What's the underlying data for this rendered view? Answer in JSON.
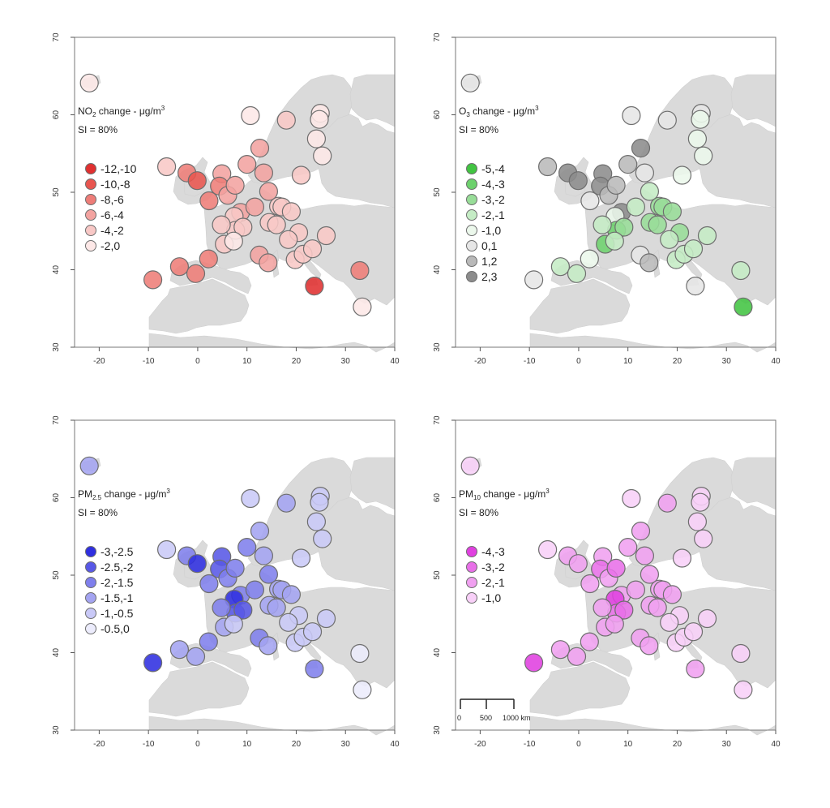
{
  "xticks": [
    "-20",
    "-10",
    "0",
    "10",
    "20",
    "30",
    "40"
  ],
  "yticks": [
    "30",
    "40",
    "50",
    "60",
    "70"
  ],
  "si_text": "SI = 80%",
  "title_suffix": " change - μg/m",
  "title_sup": "3",
  "scale_bar": {
    "labels": [
      "0",
      "500",
      "1000 km"
    ]
  },
  "stations": [
    {
      "lon": -22,
      "lat": 64.1
    },
    {
      "lon": 10.7,
      "lat": 59.9
    },
    {
      "lon": 18,
      "lat": 59.3
    },
    {
      "lon": 24.9,
      "lat": 60.2
    },
    {
      "lon": 24.7,
      "lat": 59.4
    },
    {
      "lon": 24.1,
      "lat": 56.9
    },
    {
      "lon": 25.3,
      "lat": 54.7
    },
    {
      "lon": 12.6,
      "lat": 55.7
    },
    {
      "lon": -6.3,
      "lat": 53.3
    },
    {
      "lon": -2.2,
      "lat": 52.5
    },
    {
      "lon": -0.1,
      "lat": 51.5
    },
    {
      "lon": 4.9,
      "lat": 52.4
    },
    {
      "lon": 4.4,
      "lat": 50.8
    },
    {
      "lon": 10,
      "lat": 53.6
    },
    {
      "lon": 13.4,
      "lat": 52.5
    },
    {
      "lon": 6.1,
      "lat": 49.6
    },
    {
      "lon": 7.6,
      "lat": 50.9
    },
    {
      "lon": 2.3,
      "lat": 48.9
    },
    {
      "lon": 8.7,
      "lat": 47.4
    },
    {
      "lon": 7.4,
      "lat": 46.9
    },
    {
      "lon": 11.6,
      "lat": 48.1
    },
    {
      "lon": 16.4,
      "lat": 48.2
    },
    {
      "lon": 14.4,
      "lat": 50.1
    },
    {
      "lon": 21,
      "lat": 52.2
    },
    {
      "lon": 17.1,
      "lat": 48.1
    },
    {
      "lon": 19,
      "lat": 47.5
    },
    {
      "lon": 14.5,
      "lat": 46.1
    },
    {
      "lon": 16,
      "lat": 45.8
    },
    {
      "lon": 20.5,
      "lat": 44.8
    },
    {
      "lon": 7.7,
      "lat": 45.1
    },
    {
      "lon": 9.2,
      "lat": 45.5
    },
    {
      "lon": 5.4,
      "lat": 43.3
    },
    {
      "lon": 4.8,
      "lat": 45.8
    },
    {
      "lon": 2.2,
      "lat": 41.4
    },
    {
      "lon": -3.7,
      "lat": 40.4
    },
    {
      "lon": -9.1,
      "lat": 38.7
    },
    {
      "lon": -0.4,
      "lat": 39.5
    },
    {
      "lon": 12.5,
      "lat": 41.9
    },
    {
      "lon": 14.3,
      "lat": 40.9
    },
    {
      "lon": 18.4,
      "lat": 43.9
    },
    {
      "lon": 19.8,
      "lat": 41.3
    },
    {
      "lon": 21.4,
      "lat": 42
    },
    {
      "lon": 23.3,
      "lat": 42.7
    },
    {
      "lon": 26.1,
      "lat": 44.4
    },
    {
      "lon": 23.7,
      "lat": 37.9
    },
    {
      "lon": 32.9,
      "lat": 39.9
    },
    {
      "lon": 33.4,
      "lat": 35.2
    },
    {
      "lon": 7.3,
      "lat": 43.7
    }
  ],
  "panels": [
    {
      "id": "no2",
      "title_main": "NO",
      "title_sub": "2",
      "legend": [
        {
          "label": "-12,-10",
          "color": "#e03030"
        },
        {
          "label": "-10,-8",
          "color": "#e8554f"
        },
        {
          "label": "-8,-6",
          "color": "#ee7d78"
        },
        {
          "label": "-6,-4",
          "color": "#f3a3a0"
        },
        {
          "label": "-4,-2",
          "color": "#f8c8c6"
        },
        {
          "label": "-2,0",
          "color": "#fde8e7"
        }
      ],
      "classes": [
        5,
        5,
        4,
        5,
        5,
        5,
        5,
        3,
        4,
        2,
        1,
        3,
        2,
        3,
        3,
        3,
        3,
        2,
        3,
        4,
        3,
        4,
        3,
        4,
        4,
        4,
        4,
        4,
        4,
        4,
        4,
        4,
        4,
        2,
        2,
        2,
        2,
        3,
        3,
        4,
        4,
        4,
        4,
        4,
        0,
        2,
        5,
        5
      ]
    },
    {
      "id": "o3",
      "title_main": "O",
      "title_sub": "3",
      "legend": [
        {
          "label": "-5,-4",
          "color": "#42c442"
        },
        {
          "label": "-4,-3",
          "color": "#6dd16d"
        },
        {
          "label": "-3,-2",
          "color": "#98dd98"
        },
        {
          "label": "-2,-1",
          "color": "#c5ecc5"
        },
        {
          "label": "-1,0",
          "color": "#ecf8ec"
        },
        {
          "label": "0,1",
          "color": "#e6e6e6"
        },
        {
          "label": "1,2",
          "color": "#b9b9b9"
        },
        {
          "label": "2,3",
          "color": "#8c8c8c"
        }
      ],
      "classes": [
        5,
        5,
        5,
        5,
        4,
        4,
        4,
        7,
        6,
        7,
        7,
        7,
        7,
        6,
        5,
        6,
        6,
        5,
        7,
        4,
        3,
        2,
        3,
        4,
        2,
        2,
        2,
        2,
        2,
        1,
        2,
        1,
        3,
        4,
        3,
        5,
        3,
        5,
        6,
        3,
        3,
        3,
        3,
        3,
        5,
        3,
        0,
        3
      ]
    },
    {
      "id": "pm25",
      "title_main": "PM",
      "title_sub": "2.5",
      "legend": [
        {
          "label": "-3,-2.5",
          "color": "#2f2fe0"
        },
        {
          "label": "-2.5,-2",
          "color": "#5858e6"
        },
        {
          "label": "-2,-1.5",
          "color": "#7f7fec"
        },
        {
          "label": "-1.5,-1",
          "color": "#a4a4f1"
        },
        {
          "label": "-1,-0.5",
          "color": "#c9c9f7"
        },
        {
          "label": "-0.5,0",
          "color": "#ececfc"
        }
      ],
      "classes": [
        3,
        4,
        3,
        4,
        4,
        4,
        4,
        3,
        4,
        2,
        0,
        1,
        1,
        2,
        3,
        2,
        2,
        2,
        2,
        0,
        2,
        3,
        2,
        4,
        3,
        3,
        3,
        3,
        4,
        1,
        1,
        3,
        2,
        2,
        3,
        0,
        3,
        2,
        3,
        4,
        4,
        4,
        4,
        4,
        2,
        5,
        5,
        4
      ]
    },
    {
      "id": "pm10",
      "title_main": "PM",
      "title_sub": "10",
      "legend": [
        {
          "label": "-4,-3",
          "color": "#e040e0"
        },
        {
          "label": "-3,-2",
          "color": "#e870e8"
        },
        {
          "label": "-2,-1",
          "color": "#f0a0f0"
        },
        {
          "label": "-1,0",
          "color": "#f8d0f8"
        }
      ],
      "classes": [
        3,
        3,
        2,
        3,
        3,
        3,
        3,
        2,
        3,
        2,
        2,
        2,
        1,
        2,
        2,
        2,
        1,
        2,
        2,
        0,
        2,
        2,
        2,
        3,
        2,
        2,
        2,
        2,
        3,
        1,
        1,
        2,
        2,
        2,
        2,
        0,
        2,
        2,
        2,
        3,
        3,
        3,
        3,
        3,
        2,
        3,
        3,
        2
      ]
    }
  ]
}
